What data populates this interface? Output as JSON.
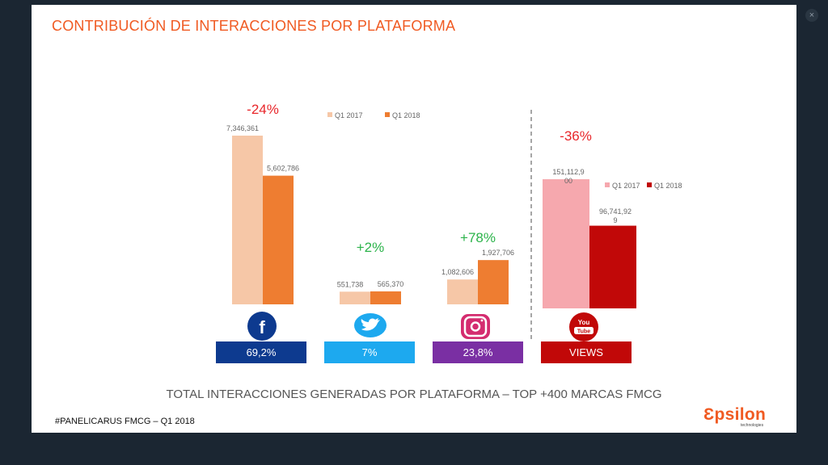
{
  "slide": {
    "title": "CONTRIBUCIÓN DE INTERACCIONES POR PLATAFORMA",
    "subtitle": "TOTAL INTERACCIONES GENERADAS POR PLATAFORMA – TOP +400 MARCAS FMCG",
    "footer": "#PANELICARUS FMCG – Q1 2018",
    "logo_text": "Ɛpsilon",
    "logo_sub": "technologies"
  },
  "colors": {
    "title": "#f05a22",
    "negative": "#e8262a",
    "positive": "#2bb34a",
    "q1_2017": "#f6c7a7",
    "q1_2018": "#ee7d31",
    "yt_q1_2017": "#f6a8ae",
    "yt_q1_2018": "#c10808",
    "facebook": "#0d3a8f",
    "twitter": "#1da9ef",
    "instagram": "#7a2fa3",
    "youtube": "#c10808"
  },
  "platforms": [
    {
      "name": "facebook",
      "box_label": "69,2%",
      "change": "-24%"
    },
    {
      "name": "twitter",
      "box_label": "7%",
      "change": "+2%"
    },
    {
      "name": "instagram",
      "box_label": "23,8%",
      "change": "+78%"
    },
    {
      "name": "youtube",
      "box_label": "VIEWS",
      "change": "-36%"
    }
  ],
  "chart_data": [
    {
      "type": "bar",
      "title": "",
      "categories": [
        "Facebook",
        "Twitter",
        "Instagram"
      ],
      "series": [
        {
          "name": "Q1 2017",
          "values": [
            7346361,
            551738,
            1082606
          ],
          "labels": [
            "7,346,361",
            "551,738",
            "1,082,606"
          ]
        },
        {
          "name": "Q1 2018",
          "values": [
            5602786,
            565370,
            1927706
          ],
          "labels": [
            "5,602,786",
            "565,370",
            "1,927,706"
          ]
        }
      ],
      "changes": [
        "-24%",
        "+2%",
        "+78%"
      ],
      "legend": "top",
      "grid": false
    },
    {
      "type": "bar",
      "title": "",
      "categories": [
        "YouTube"
      ],
      "series": [
        {
          "name": "Q1 2017",
          "values": [
            151112900
          ],
          "labels": [
            "151,112,9\n00"
          ]
        },
        {
          "name": "Q1 2018",
          "values": [
            96741929
          ],
          "labels": [
            "96,741,92\n9"
          ]
        }
      ],
      "changes": [
        "-36%"
      ],
      "legend": "right",
      "grid": false
    }
  ]
}
